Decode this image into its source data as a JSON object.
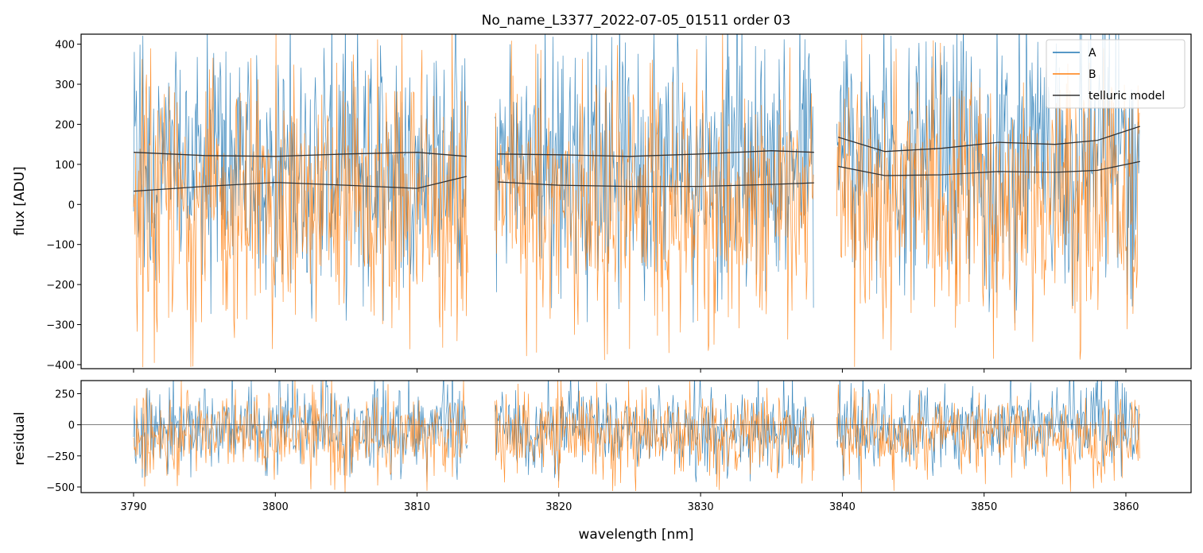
{
  "chart_data": [
    {
      "type": "line",
      "title": "No_name_L3377_2022-07-05_01511  order 03",
      "xlabel": "",
      "ylabel": "flux [ADU]",
      "xlim": [
        3786.3,
        3864.6
      ],
      "ylim": [
        -410,
        425
      ],
      "xticks": [
        3790,
        3800,
        3810,
        3820,
        3830,
        3840,
        3850,
        3860
      ],
      "xtick_labels_shown": false,
      "yticks": [
        -400,
        -300,
        -200,
        -100,
        0,
        100,
        200,
        300,
        400
      ],
      "ytick_labels": [
        "−400",
        "−300",
        "−200",
        "−100",
        "0",
        "100",
        "200",
        "300",
        "400"
      ],
      "grid": false,
      "legend_position": "top-right",
      "segments": [
        [
          3790.0,
          3813.6
        ],
        [
          3815.5,
          3838.0
        ],
        [
          3839.6,
          3861.0
        ]
      ],
      "series": [
        {
          "name": "A",
          "color": "#1f77b4",
          "style": "noisy spectrum",
          "median": 110,
          "median_by_segment": [
            95,
            110,
            120
          ],
          "spread_low": -300,
          "spread_high": 420
        },
        {
          "name": "B",
          "color": "#ff7f0e",
          "style": "noisy spectrum",
          "median": 10,
          "median_by_segment": [
            0,
            10,
            10
          ],
          "spread_low": -410,
          "spread_high": 330
        },
        {
          "name": "telluric model",
          "color": "#333333",
          "style": "smooth",
          "curves": [
            {
              "x": [
                3790,
                3795,
                3800,
                3805,
                3810,
                3813.5
              ],
              "y": [
                130,
                122,
                120,
                126,
                130,
                120
              ]
            },
            {
              "x": [
                3790,
                3795,
                3800,
                3805,
                3810,
                3813.5
              ],
              "y": [
                33,
                45,
                55,
                48,
                40,
                70
              ]
            },
            {
              "x": [
                3815.7,
                3820,
                3825,
                3830,
                3835,
                3838
              ],
              "y": [
                126,
                124,
                120,
                126,
                134,
                130
              ]
            },
            {
              "x": [
                3815.7,
                3820,
                3825,
                3830,
                3835,
                3838
              ],
              "y": [
                56,
                48,
                45,
                45,
                50,
                54
              ]
            },
            {
              "x": [
                3839.7,
                3843,
                3847,
                3851,
                3855,
                3858,
                3861
              ],
              "y": [
                168,
                132,
                140,
                155,
                150,
                160,
                195
              ]
            },
            {
              "x": [
                3839.7,
                3843,
                3847,
                3851,
                3855,
                3858,
                3861
              ],
              "y": [
                95,
                72,
                74,
                82,
                80,
                85,
                107
              ]
            }
          ]
        }
      ]
    },
    {
      "type": "line",
      "title": "",
      "xlabel": "wavelength [nm]",
      "ylabel": "residual",
      "xlim": [
        3786.3,
        3864.6
      ],
      "ylim": [
        -545,
        355
      ],
      "xticks": [
        3790,
        3800,
        3810,
        3820,
        3830,
        3840,
        3850,
        3860
      ],
      "xtick_labels": [
        "3790",
        "3800",
        "3810",
        "3820",
        "3830",
        "3840",
        "3850",
        "3860"
      ],
      "yticks": [
        -500,
        -250,
        0,
        250
      ],
      "ytick_labels": [
        "−500",
        "−250",
        "0",
        "250"
      ],
      "zero_line": 0,
      "grid": false,
      "segments": [
        [
          3790.0,
          3813.6
        ],
        [
          3815.5,
          3838.0
        ],
        [
          3839.6,
          3861.0
        ]
      ],
      "series": [
        {
          "name": "A",
          "color": "#1f77b4",
          "style": "noisy residual",
          "median": -20,
          "spread_low": -470,
          "spread_high": 355
        },
        {
          "name": "B",
          "color": "#ff7f0e",
          "style": "noisy residual",
          "median": -90,
          "spread_low": -545,
          "spread_high": 260
        }
      ]
    }
  ],
  "legend": {
    "items": [
      {
        "label": "A",
        "color": "#1f77b4"
      },
      {
        "label": "B",
        "color": "#ff7f0e"
      },
      {
        "label": "telluric model",
        "color": "#333333"
      }
    ]
  }
}
